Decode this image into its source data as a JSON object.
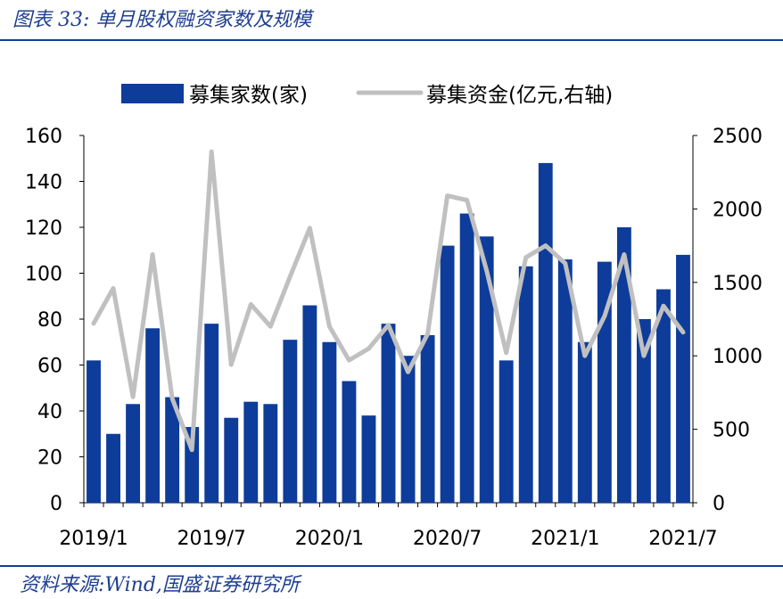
{
  "header": {
    "title": "图表 33:  单月股权融资家数及规模"
  },
  "footer": {
    "source": "资料来源:Wind,国盛证券研究所"
  },
  "colors": {
    "bar": "#0d3c9b",
    "line": "#c0c0c0",
    "rule": "#0f3f99",
    "title": "#1f3f8f"
  },
  "chart_data": {
    "type": "bar",
    "x": [
      "2019/1",
      "2019/2",
      "2019/3",
      "2019/4",
      "2019/5",
      "2019/6",
      "2019/7",
      "2019/8",
      "2019/9",
      "2019/10",
      "2019/11",
      "2019/12",
      "2020/1",
      "2020/2",
      "2020/3",
      "2020/4",
      "2020/5",
      "2020/6",
      "2020/7",
      "2020/8",
      "2020/9",
      "2020/10",
      "2020/11",
      "2020/12",
      "2021/1",
      "2021/2",
      "2021/3",
      "2021/4",
      "2021/5",
      "2021/6",
      "2021/7"
    ],
    "x_tick_labels": [
      "2019/1",
      "2019/7",
      "2020/1",
      "2020/7",
      "2021/1",
      "2021/7"
    ],
    "series": [
      {
        "name": "募集家数(家)",
        "type": "bar",
        "axis": "left",
        "values": [
          62,
          30,
          43,
          76,
          46,
          33,
          78,
          37,
          44,
          43,
          71,
          86,
          70,
          53,
          38,
          78,
          64,
          73,
          112,
          126,
          116,
          62,
          103,
          148,
          106,
          70,
          105,
          120,
          80,
          93,
          108
        ]
      },
      {
        "name": "募集资金(亿元,右轴)",
        "type": "line",
        "axis": "right",
        "values": [
          1220,
          1460,
          720,
          1690,
          710,
          360,
          2390,
          940,
          1350,
          1200,
          1540,
          1870,
          1200,
          970,
          1050,
          1210,
          890,
          1150,
          2090,
          2060,
          1580,
          1020,
          1670,
          1750,
          1630,
          1000,
          1270,
          1690,
          1000,
          1340,
          1160
        ]
      }
    ],
    "left_axis": {
      "ylim": [
        0,
        160
      ],
      "ticks": [
        0,
        20,
        40,
        60,
        80,
        100,
        120,
        140,
        160
      ]
    },
    "right_axis": {
      "ylim": [
        0,
        2500
      ],
      "ticks": [
        0,
        500,
        1000,
        1500,
        2000,
        2500
      ]
    },
    "legend": "top",
    "grid": false
  }
}
